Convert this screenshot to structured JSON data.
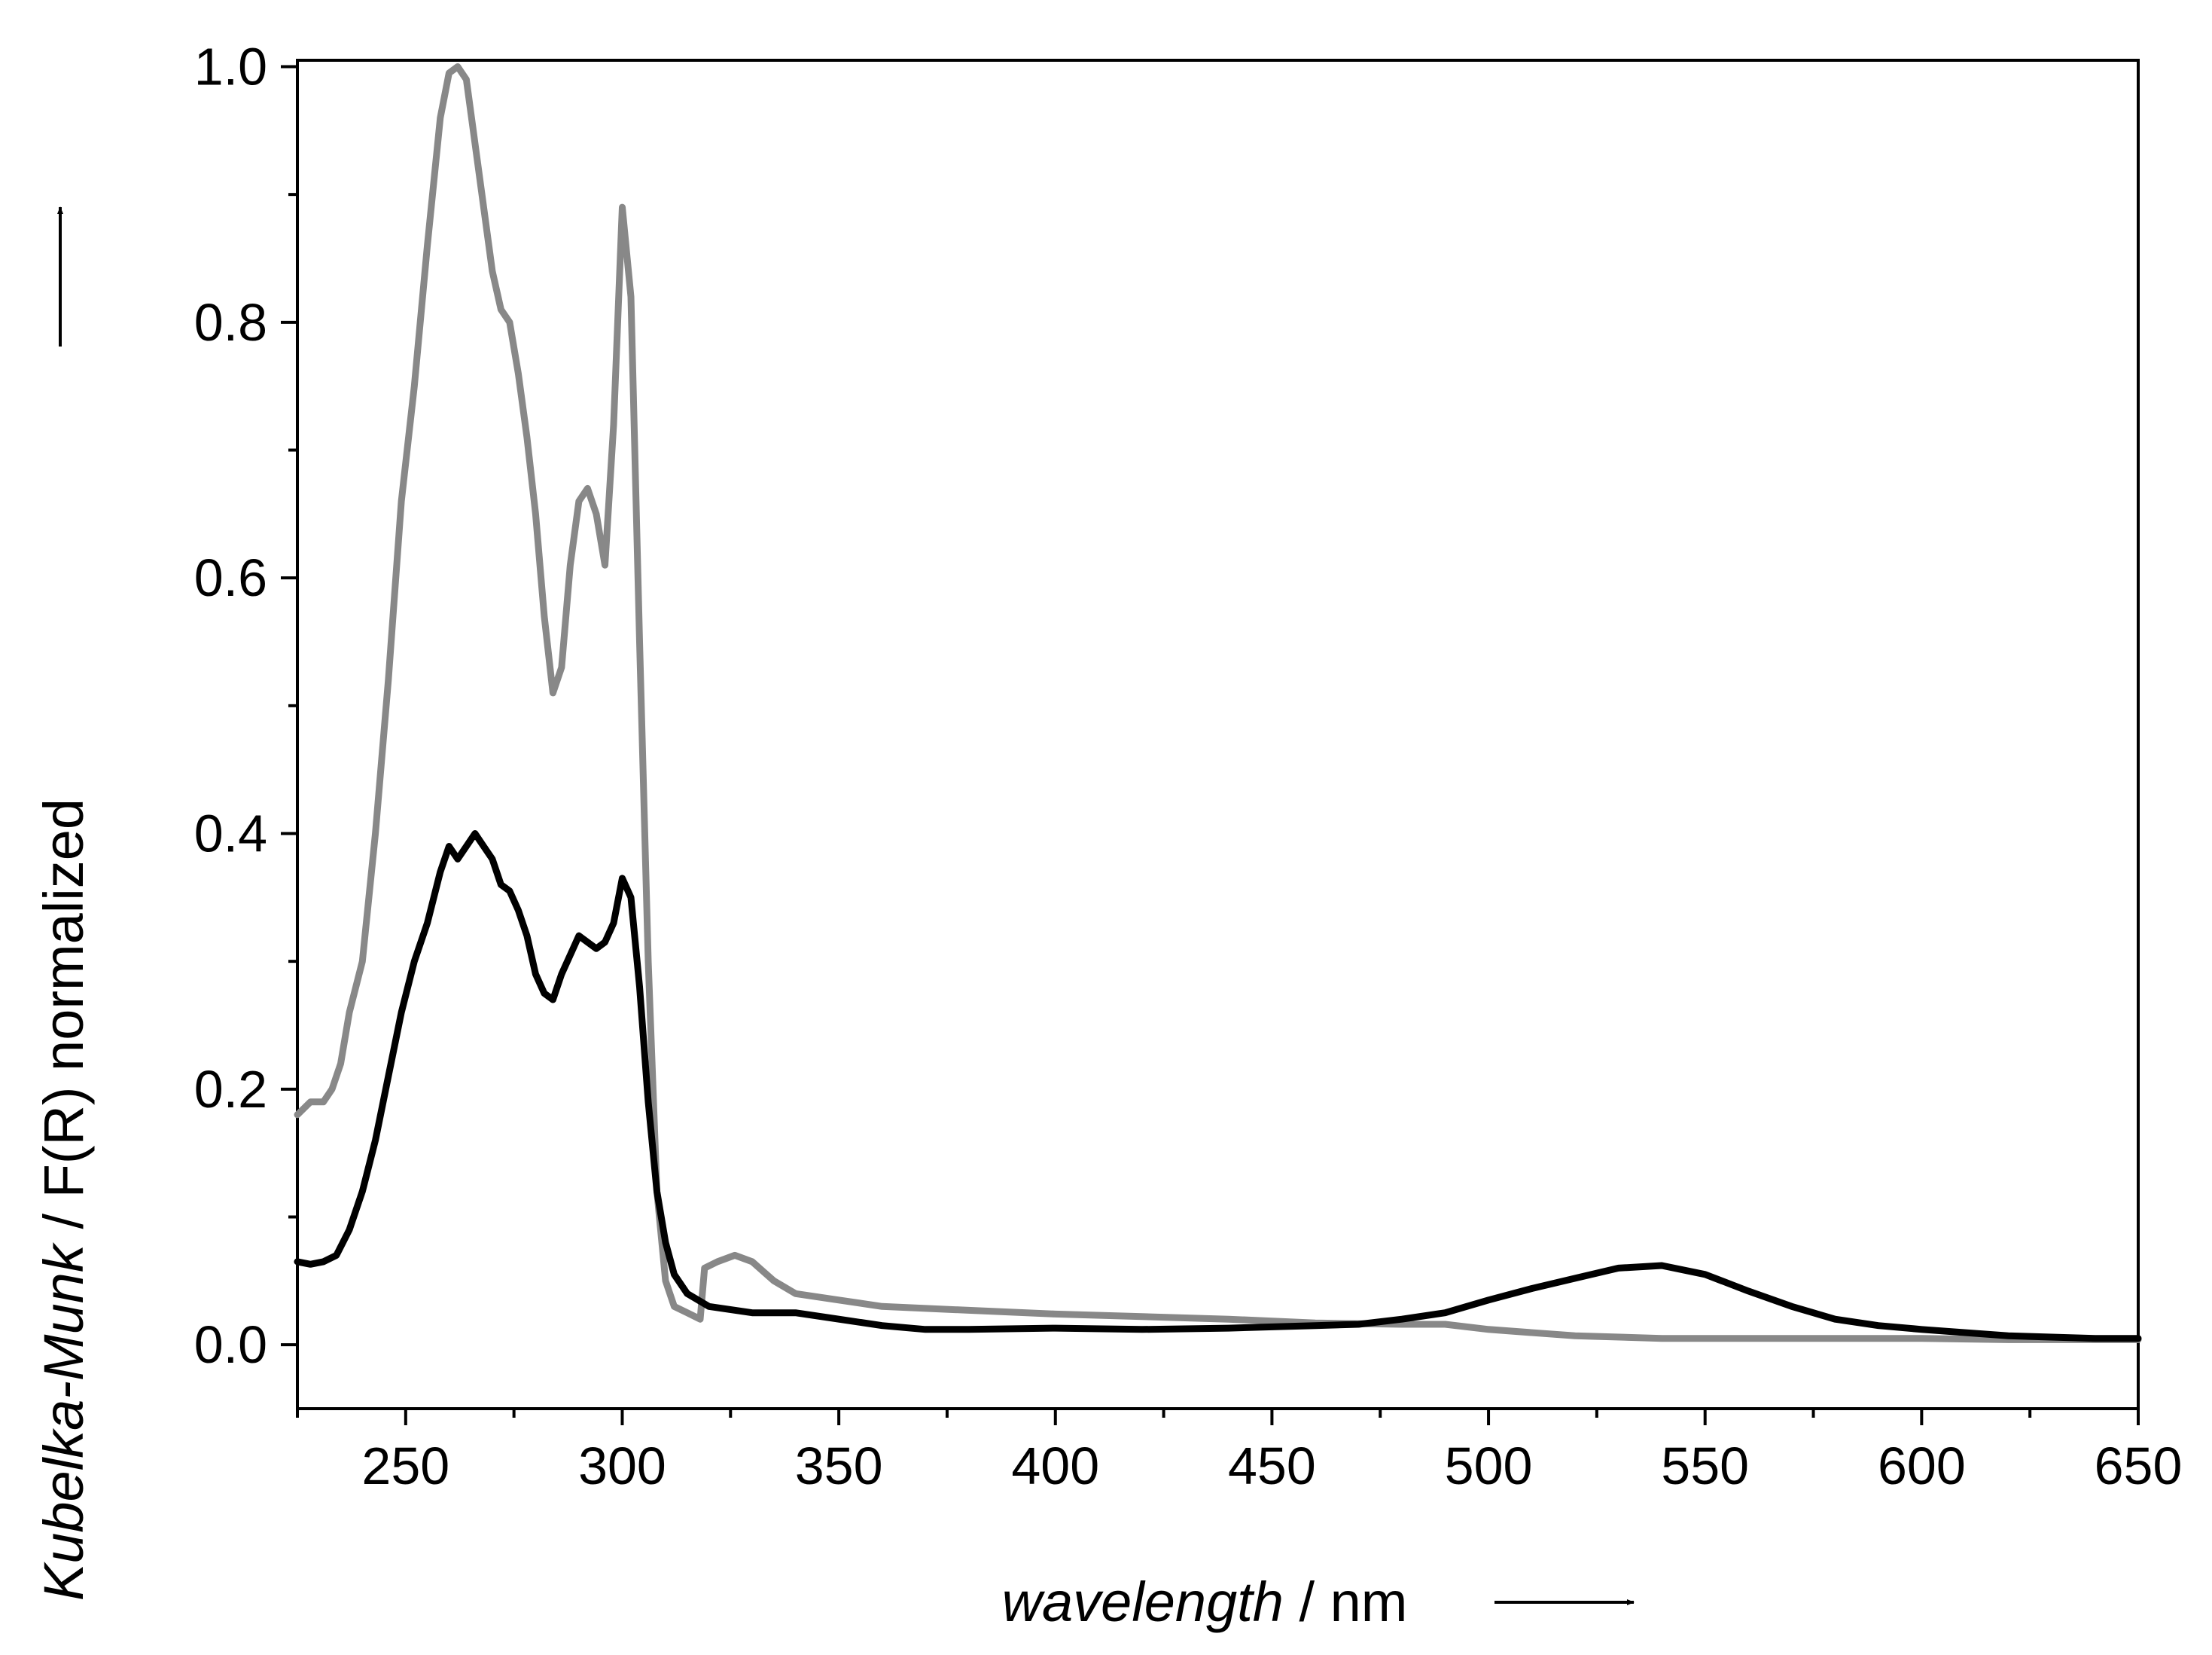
{
  "chart_data": {
    "type": "line",
    "xlabel_italic": "wavelength",
    "xlabel_rest": " / nm",
    "ylabel_italic": "Kubelka-Munk",
    "ylabel_rest": " / F(R) normalized",
    "xlim": [
      225,
      650
    ],
    "ylim": [
      -0.05,
      1.005
    ],
    "xticks": [
      250,
      300,
      350,
      400,
      450,
      500,
      550,
      600,
      650
    ],
    "xtick_labels": [
      "250",
      "300",
      "350",
      "400",
      "450",
      "500",
      "550",
      "600",
      "650"
    ],
    "yticks": [
      0.0,
      0.2,
      0.4,
      0.6,
      0.8,
      1.0
    ],
    "ytick_labels": [
      "0.0",
      "0.2",
      "0.4",
      "0.6",
      "0.8",
      "1.0"
    ],
    "grid": false,
    "series": [
      {
        "color": "#888888",
        "points": [
          [
            225,
            0.18
          ],
          [
            228,
            0.19
          ],
          [
            231,
            0.19
          ],
          [
            233,
            0.2
          ],
          [
            235,
            0.22
          ],
          [
            237,
            0.26
          ],
          [
            240,
            0.3
          ],
          [
            243,
            0.4
          ],
          [
            246,
            0.52
          ],
          [
            249,
            0.66
          ],
          [
            252,
            0.75
          ],
          [
            255,
            0.86
          ],
          [
            258,
            0.96
          ],
          [
            260,
            0.995
          ],
          [
            262,
            1.0
          ],
          [
            264,
            0.99
          ],
          [
            266,
            0.94
          ],
          [
            268,
            0.89
          ],
          [
            270,
            0.84
          ],
          [
            272,
            0.81
          ],
          [
            274,
            0.8
          ],
          [
            276,
            0.76
          ],
          [
            278,
            0.71
          ],
          [
            280,
            0.65
          ],
          [
            282,
            0.57
          ],
          [
            284,
            0.51
          ],
          [
            286,
            0.53
          ],
          [
            288,
            0.61
          ],
          [
            290,
            0.66
          ],
          [
            292,
            0.67
          ],
          [
            294,
            0.65
          ],
          [
            296,
            0.61
          ],
          [
            298,
            0.72
          ],
          [
            300,
            0.89
          ],
          [
            302,
            0.82
          ],
          [
            304,
            0.55
          ],
          [
            306,
            0.3
          ],
          [
            308,
            0.12
          ],
          [
            310,
            0.05
          ],
          [
            312,
            0.03
          ],
          [
            315,
            0.025
          ],
          [
            318,
            0.02
          ],
          [
            319,
            0.06
          ],
          [
            322,
            0.065
          ],
          [
            326,
            0.07
          ],
          [
            330,
            0.065
          ],
          [
            335,
            0.05
          ],
          [
            340,
            0.04
          ],
          [
            350,
            0.035
          ],
          [
            360,
            0.03
          ],
          [
            380,
            0.027
          ],
          [
            400,
            0.024
          ],
          [
            420,
            0.022
          ],
          [
            440,
            0.02
          ],
          [
            460,
            0.017
          ],
          [
            480,
            0.016
          ],
          [
            490,
            0.016
          ],
          [
            500,
            0.012
          ],
          [
            520,
            0.007
          ],
          [
            540,
            0.005
          ],
          [
            560,
            0.005
          ],
          [
            580,
            0.005
          ],
          [
            600,
            0.005
          ],
          [
            620,
            0.004
          ],
          [
            640,
            0.004
          ],
          [
            650,
            0.004
          ]
        ]
      },
      {
        "color": "#000000",
        "points": [
          [
            225,
            0.065
          ],
          [
            228,
            0.063
          ],
          [
            231,
            0.065
          ],
          [
            234,
            0.07
          ],
          [
            237,
            0.09
          ],
          [
            240,
            0.12
          ],
          [
            243,
            0.16
          ],
          [
            246,
            0.21
          ],
          [
            249,
            0.26
          ],
          [
            252,
            0.3
          ],
          [
            255,
            0.33
          ],
          [
            258,
            0.37
          ],
          [
            260,
            0.39
          ],
          [
            262,
            0.38
          ],
          [
            264,
            0.39
          ],
          [
            266,
            0.4
          ],
          [
            268,
            0.39
          ],
          [
            270,
            0.38
          ],
          [
            272,
            0.36
          ],
          [
            274,
            0.355
          ],
          [
            276,
            0.34
          ],
          [
            278,
            0.32
          ],
          [
            280,
            0.29
          ],
          [
            282,
            0.275
          ],
          [
            284,
            0.27
          ],
          [
            286,
            0.29
          ],
          [
            288,
            0.305
          ],
          [
            290,
            0.32
          ],
          [
            292,
            0.315
          ],
          [
            294,
            0.31
          ],
          [
            296,
            0.315
          ],
          [
            298,
            0.33
          ],
          [
            300,
            0.365
          ],
          [
            302,
            0.35
          ],
          [
            304,
            0.28
          ],
          [
            306,
            0.19
          ],
          [
            308,
            0.12
          ],
          [
            310,
            0.08
          ],
          [
            312,
            0.055
          ],
          [
            315,
            0.04
          ],
          [
            320,
            0.03
          ],
          [
            330,
            0.025
          ],
          [
            340,
            0.025
          ],
          [
            350,
            0.02
          ],
          [
            360,
            0.015
          ],
          [
            370,
            0.012
          ],
          [
            380,
            0.012
          ],
          [
            400,
            0.013
          ],
          [
            420,
            0.012
          ],
          [
            440,
            0.013
          ],
          [
            460,
            0.015
          ],
          [
            470,
            0.016
          ],
          [
            480,
            0.02
          ],
          [
            490,
            0.025
          ],
          [
            500,
            0.035
          ],
          [
            510,
            0.044
          ],
          [
            520,
            0.052
          ],
          [
            530,
            0.06
          ],
          [
            540,
            0.062
          ],
          [
            550,
            0.055
          ],
          [
            560,
            0.042
          ],
          [
            570,
            0.03
          ],
          [
            580,
            0.02
          ],
          [
            590,
            0.015
          ],
          [
            600,
            0.012
          ],
          [
            620,
            0.007
          ],
          [
            640,
            0.005
          ],
          [
            650,
            0.005
          ]
        ]
      }
    ]
  }
}
